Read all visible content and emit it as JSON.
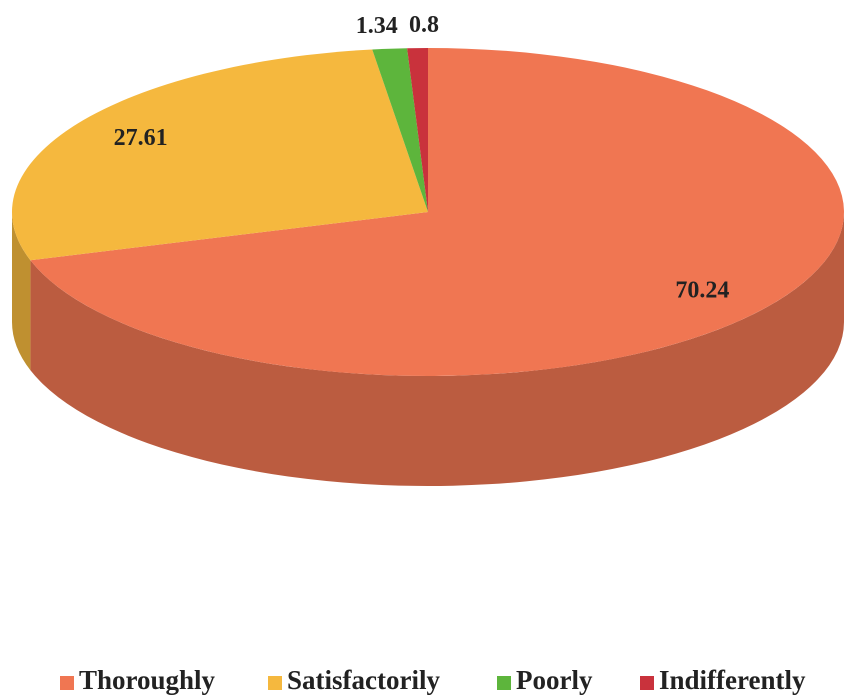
{
  "chart_data": {
    "type": "pie",
    "categories": [
      "Thoroughly",
      "Satisfactorily",
      "Poorly",
      "Indifferently"
    ],
    "values": [
      70.24,
      27.61,
      1.34,
      0.8
    ],
    "colors": [
      "#f07652",
      "#f5b83e",
      "#5db53c",
      "#c9323c"
    ],
    "legend": "bottom"
  }
}
